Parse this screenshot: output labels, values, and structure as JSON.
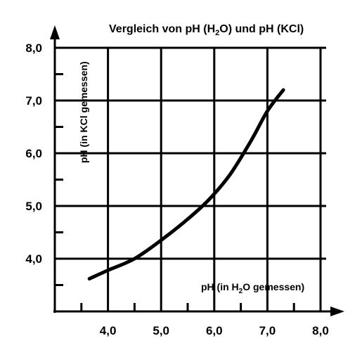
{
  "chart_data": {
    "type": "line",
    "title_parts": [
      "Vergleich von pH (H",
      "2",
      "O) und pH (KCl)"
    ],
    "xlabel_parts": [
      "pH (in H",
      "2",
      "O gemessen)"
    ],
    "ylabel": "pH (in KCl gemessen)",
    "xlim": [
      3.0,
      8.0
    ],
    "ylim": [
      3.0,
      8.0
    ],
    "x_ticks": [
      "4,0",
      "5,0",
      "6,0",
      "7,0",
      "8,0"
    ],
    "y_ticks": [
      "4,0",
      "5,0",
      "6,0",
      "7,0",
      "8,0"
    ],
    "grid": true,
    "series": [
      {
        "x": [
          3.65,
          4.0,
          4.5,
          5.0,
          5.5,
          5.9,
          6.3,
          6.7,
          7.0,
          7.3
        ],
        "y": [
          3.62,
          3.78,
          4.0,
          4.35,
          4.75,
          5.12,
          5.6,
          6.25,
          6.8,
          7.2
        ]
      }
    ]
  }
}
